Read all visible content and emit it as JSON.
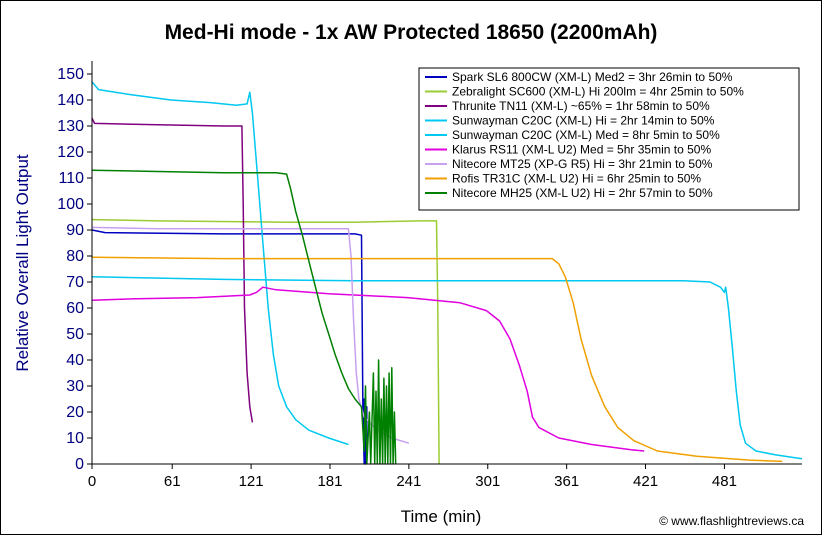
{
  "chart_data": {
    "type": "line",
    "title": "Med-Hi mode - 1x AW Protected 18650 (2200mAh)",
    "xlabel": "Time (min)",
    "ylabel": "Relative Overall Light Output",
    "xlim": [
      0,
      540
    ],
    "ylim": [
      0,
      155
    ],
    "x_ticks": [
      0,
      61,
      121,
      181,
      241,
      301,
      361,
      421,
      481
    ],
    "y_ticks": [
      0,
      10,
      20,
      30,
      40,
      50,
      60,
      70,
      80,
      90,
      100,
      110,
      120,
      130,
      140,
      150
    ],
    "grid": false,
    "legend_position": "top-right",
    "credit": "© www.flashlightreviews.ca",
    "series": [
      {
        "name": "Spark SL6 800CW (XM-L) Med2 = 3hr 26min to 50%",
        "color": "#0000c0",
        "points": [
          [
            0,
            90
          ],
          [
            10,
            89
          ],
          [
            100,
            88.5
          ],
          [
            200,
            88.5
          ],
          [
            205,
            88
          ],
          [
            206,
            20
          ],
          [
            207,
            0
          ],
          [
            207,
            25
          ],
          [
            208,
            0
          ],
          [
            209,
            22
          ],
          [
            209,
            0
          ]
        ]
      },
      {
        "name": "Zebralight SC600 (XM-L) Hi 200lm = 4hr 25min to 50%",
        "color": "#9acd32",
        "points": [
          [
            0,
            94
          ],
          [
            50,
            93.5
          ],
          [
            150,
            93
          ],
          [
            200,
            93
          ],
          [
            250,
            93.5
          ],
          [
            262,
            93.5
          ],
          [
            263,
            60
          ],
          [
            264,
            0
          ]
        ]
      },
      {
        "name": "Thrunite TN11 (XM-L) ~65% = 1hr 58min to 50%",
        "color": "#800080",
        "points": [
          [
            0,
            133
          ],
          [
            2,
            131
          ],
          [
            50,
            130.5
          ],
          [
            100,
            130
          ],
          [
            114,
            130
          ],
          [
            115,
            100
          ],
          [
            116,
            60
          ],
          [
            118,
            35
          ],
          [
            120,
            22
          ],
          [
            122,
            16
          ]
        ]
      },
      {
        "name": "Sunwayman C20C (XM-L) Hi = 2hr 14min to 50%",
        "color": "#00c8f0",
        "points": [
          [
            0,
            147
          ],
          [
            5,
            144
          ],
          [
            30,
            142
          ],
          [
            60,
            140
          ],
          [
            90,
            139
          ],
          [
            110,
            138
          ],
          [
            118,
            138.5
          ],
          [
            120,
            143
          ],
          [
            122,
            135
          ],
          [
            126,
            110
          ],
          [
            130,
            85
          ],
          [
            134,
            60
          ],
          [
            138,
            42
          ],
          [
            142,
            30
          ],
          [
            148,
            22
          ],
          [
            155,
            17
          ],
          [
            165,
            13
          ],
          [
            180,
            10
          ],
          [
            195,
            7.5
          ]
        ]
      },
      {
        "name": "Sunwayman C20C (XM-L) Med = 8hr 5min to 50%",
        "color": "#00c8f0",
        "points": [
          [
            0,
            72
          ],
          [
            100,
            71
          ],
          [
            200,
            70.5
          ],
          [
            300,
            70.5
          ],
          [
            400,
            70.5
          ],
          [
            450,
            70.5
          ],
          [
            470,
            70
          ],
          [
            478,
            68
          ],
          [
            481,
            66
          ],
          [
            482,
            68
          ],
          [
            484,
            60
          ],
          [
            487,
            45
          ],
          [
            490,
            28
          ],
          [
            493,
            15
          ],
          [
            497,
            8
          ],
          [
            505,
            5
          ],
          [
            520,
            3.5
          ],
          [
            540,
            2
          ]
        ]
      },
      {
        "name": "Klarus RS11 (XM-L U2) Med = 5hr 35min to 50%",
        "color": "#e000e0",
        "points": [
          [
            0,
            63
          ],
          [
            30,
            63.5
          ],
          [
            80,
            64
          ],
          [
            120,
            65
          ],
          [
            125,
            66
          ],
          [
            130,
            68
          ],
          [
            140,
            67
          ],
          [
            180,
            65.5
          ],
          [
            240,
            64
          ],
          [
            280,
            62
          ],
          [
            300,
            59
          ],
          [
            310,
            55
          ],
          [
            318,
            48
          ],
          [
            325,
            38
          ],
          [
            331,
            28
          ],
          [
            335,
            18
          ],
          [
            340,
            14
          ],
          [
            355,
            10
          ],
          [
            380,
            7.5
          ],
          [
            410,
            5.5
          ],
          [
            420,
            5
          ]
        ]
      },
      {
        "name": "Nitecore MT25 (XP-G R5) Hi = 3hr 21min to 50%",
        "color": "#c8a0f0",
        "points": [
          [
            0,
            91
          ],
          [
            50,
            90.5
          ],
          [
            100,
            90.5
          ],
          [
            150,
            90.5
          ],
          [
            195,
            90.5
          ],
          [
            197,
            80
          ],
          [
            199,
            55
          ],
          [
            201,
            35
          ],
          [
            203,
            25
          ],
          [
            207,
            18
          ],
          [
            215,
            14
          ],
          [
            228,
            10
          ],
          [
            241,
            8
          ]
        ]
      },
      {
        "name": "Rofis TR31C (XM-L U2) Hi = 6hr 25min to 50%",
        "color": "#f0a000",
        "points": [
          [
            0,
            79.5
          ],
          [
            100,
            79
          ],
          [
            200,
            79
          ],
          [
            300,
            79
          ],
          [
            350,
            79
          ],
          [
            355,
            77
          ],
          [
            360,
            72
          ],
          [
            366,
            62
          ],
          [
            372,
            48
          ],
          [
            380,
            34
          ],
          [
            390,
            22
          ],
          [
            400,
            14
          ],
          [
            412,
            9
          ],
          [
            430,
            5
          ],
          [
            460,
            3
          ],
          [
            500,
            1.5
          ],
          [
            525,
            1
          ]
        ]
      },
      {
        "name": "Nitecore MH25 (XM-L U2) Hi = 2hr 57min to 50%",
        "color": "#008000",
        "points": [
          [
            0,
            113
          ],
          [
            50,
            112.5
          ],
          [
            100,
            112
          ],
          [
            140,
            112
          ],
          [
            148,
            111.5
          ],
          [
            151,
            106
          ],
          [
            155,
            97
          ],
          [
            160,
            88
          ],
          [
            165,
            78
          ],
          [
            170,
            68
          ],
          [
            175,
            58
          ],
          [
            180,
            50
          ],
          [
            185,
            42
          ],
          [
            190,
            35
          ],
          [
            195,
            29
          ],
          [
            200,
            25
          ],
          [
            205,
            22
          ],
          [
            207,
            5
          ],
          [
            208,
            30
          ],
          [
            209,
            0
          ],
          [
            211,
            20
          ],
          [
            212,
            0
          ],
          [
            214,
            35
          ],
          [
            215,
            0
          ],
          [
            216,
            28
          ],
          [
            217,
            0
          ],
          [
            218,
            40
          ],
          [
            219,
            0
          ],
          [
            220,
            25
          ],
          [
            221,
            0
          ],
          [
            222,
            33
          ],
          [
            223,
            0
          ],
          [
            224,
            30
          ],
          [
            225,
            0
          ],
          [
            226,
            35
          ],
          [
            227,
            0
          ],
          [
            228,
            37
          ],
          [
            229,
            0
          ],
          [
            230,
            20
          ],
          [
            231,
            0
          ]
        ]
      }
    ]
  }
}
